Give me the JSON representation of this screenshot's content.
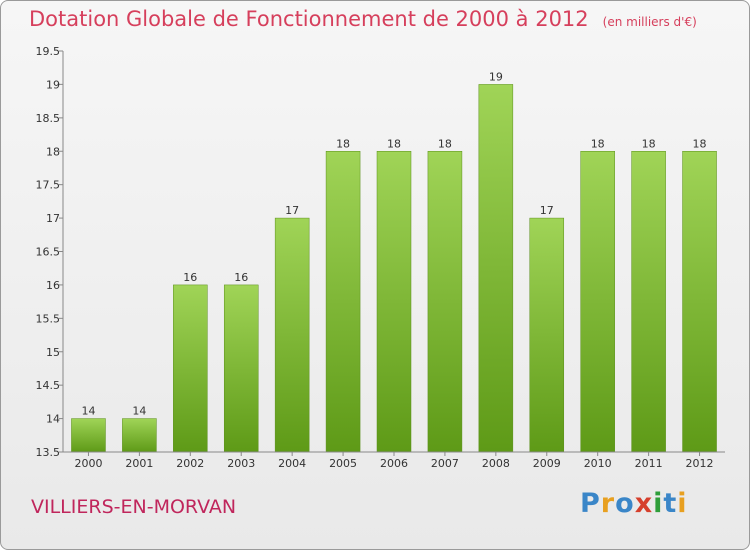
{
  "chart_data": {
    "type": "bar",
    "title": "Dotation Globale de Fonctionnement de 2000 à 2012",
    "subtitle": "(en milliers d'€)",
    "categories": [
      "2000",
      "2001",
      "2002",
      "2003",
      "2004",
      "2005",
      "2006",
      "2007",
      "2008",
      "2009",
      "2010",
      "2011",
      "2012"
    ],
    "values": [
      14,
      14,
      16,
      16,
      17,
      18,
      18,
      18,
      19,
      17,
      18,
      18,
      18
    ],
    "data_labels": [
      "14",
      "14",
      "16",
      "16",
      "17",
      "18",
      "18",
      "18",
      "19",
      "17",
      "18",
      "18",
      "18"
    ],
    "ylim": [
      13.5,
      19.5
    ],
    "yticks": [
      13.5,
      14,
      14.5,
      15,
      15.5,
      16,
      16.5,
      17,
      17.5,
      18,
      18.5,
      19,
      19.5
    ],
    "ytick_labels": [
      "13.5",
      "14",
      "14.5",
      "15",
      "15.5",
      "16",
      "16.5",
      "17",
      "17.5",
      "18",
      "18.5",
      "19",
      "19.5"
    ],
    "xlabel": "",
    "ylabel": "",
    "grid": false,
    "bar_color": "#7cba2a"
  },
  "footer": {
    "commune": "VILLIERS-EN-MORVAN"
  },
  "logo": {
    "text": "Proxiti",
    "letters": [
      "P",
      "r",
      "o",
      "x",
      "i",
      "t",
      "i"
    ],
    "colors": [
      "#3a86c8",
      "#e8a020",
      "#3a86c8",
      "#d63f2c",
      "#2e9e3a",
      "#3a86c8",
      "#e8a020"
    ]
  }
}
